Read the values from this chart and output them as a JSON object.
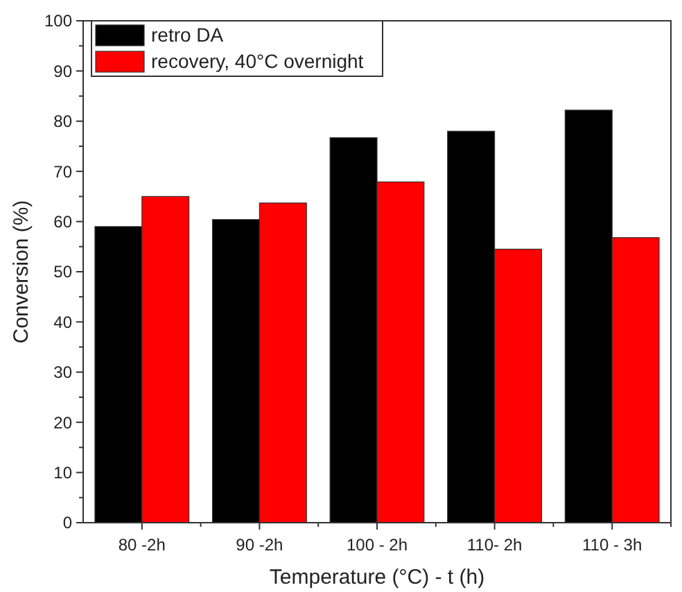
{
  "chart_data": {
    "type": "bar",
    "xlabel": "Temperature (°C) - t (h)",
    "ylabel": "Conversion (%)",
    "categories": [
      "80 -2h",
      "90 -2h",
      "100 - 2h",
      "110- 2h",
      "110 - 3h"
    ],
    "series": [
      {
        "name": "retro DA",
        "color": "#000000",
        "values": [
          59.0,
          60.4,
          76.7,
          78.0,
          82.2
        ]
      },
      {
        "name": "recovery, 40°C overnight",
        "color": "#ff0000",
        "values": [
          65.0,
          63.7,
          67.9,
          54.5,
          56.8
        ]
      }
    ],
    "ylim": [
      0,
      100
    ],
    "yticks": [
      0,
      10,
      20,
      30,
      40,
      50,
      60,
      70,
      80,
      90,
      100
    ],
    "legend": "top left"
  }
}
